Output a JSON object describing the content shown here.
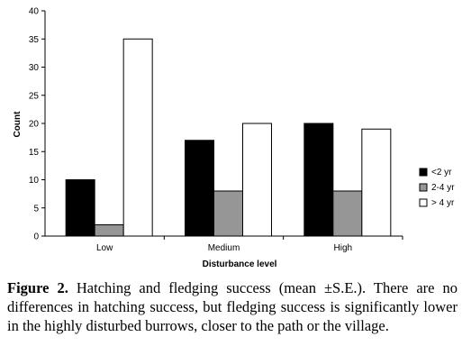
{
  "chart_data": {
    "type": "bar",
    "title": "",
    "xlabel": "Disturbance level",
    "ylabel": "Count",
    "categories": [
      "Low",
      "Medium",
      "High"
    ],
    "series": [
      {
        "name": "<2 yr",
        "values": [
          10,
          17,
          20
        ],
        "color": "#000000"
      },
      {
        "name": "2-4 yr",
        "values": [
          2,
          8,
          8
        ],
        "color": "#969696"
      },
      {
        "name": "> 4 yr",
        "values": [
          35,
          20,
          19
        ],
        "color": "#ffffff"
      }
    ],
    "ylim": [
      0,
      40
    ],
    "yticks": [
      0,
      5,
      10,
      15,
      20,
      25,
      30,
      35,
      40
    ],
    "grid": false,
    "legend_position": "right"
  },
  "caption": {
    "label": "Figure 2.",
    "text": "Hatching and fledging success (mean ±S.E.). There are no differences in hatching success, but fledging success is significantly lower in the highly disturbed burrows, closer to the path or the village."
  }
}
